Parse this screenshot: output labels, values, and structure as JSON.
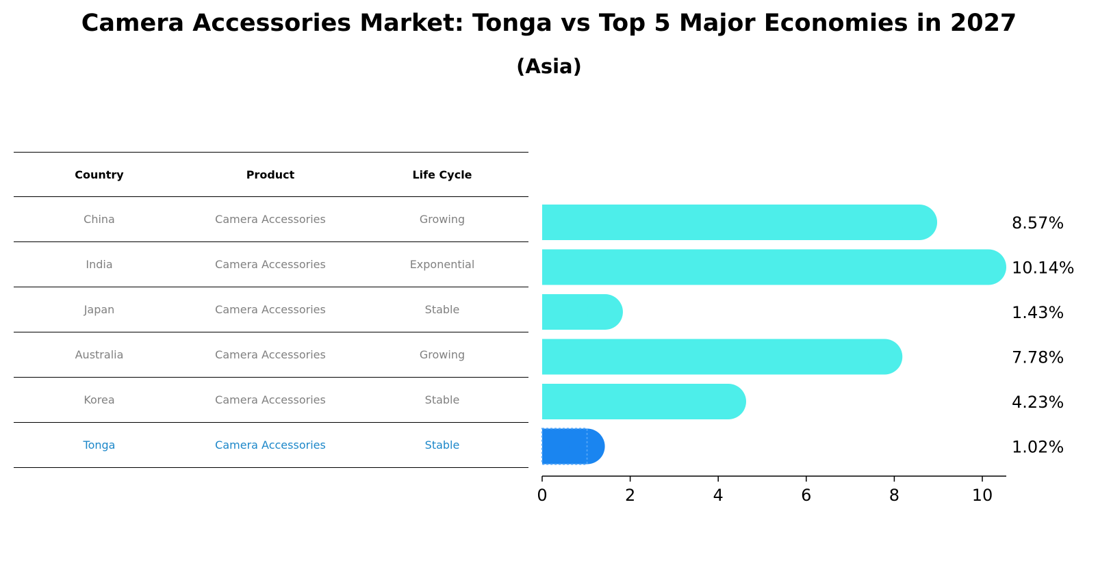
{
  "chart_data": {
    "type": "bar",
    "orientation": "horizontal",
    "title": "Camera Accessories Market: Tonga vs Top 5 Major Economies in 2027",
    "subtitle": "(Asia)",
    "table": {
      "headers": [
        "Country",
        "Product",
        "Life Cycle"
      ],
      "rows": [
        {
          "country": "China",
          "product": "Camera Accessories",
          "life_cycle": "Growing"
        },
        {
          "country": "India",
          "product": "Camera Accessories",
          "life_cycle": "Exponential"
        },
        {
          "country": "Japan",
          "product": "Camera Accessories",
          "life_cycle": "Stable"
        },
        {
          "country": "Australia",
          "product": "Camera Accessories",
          "life_cycle": "Growing"
        },
        {
          "country": "Korea",
          "product": "Camera Accessories",
          "life_cycle": "Stable"
        },
        {
          "country": "Tonga",
          "product": "Camera Accessories",
          "life_cycle": "Stable"
        }
      ]
    },
    "categories": [
      "China",
      "India",
      "Japan",
      "Australia",
      "Korea",
      "Tonga"
    ],
    "values": [
      8.57,
      10.14,
      1.43,
      7.78,
      4.23,
      1.02
    ],
    "value_labels": [
      "8.57%",
      "10.14%",
      "1.43%",
      "7.78%",
      "4.23%",
      "1.02%"
    ],
    "highlight": "Tonga",
    "xlim": [
      0,
      10.65
    ],
    "xticks": [
      0,
      2,
      4,
      6,
      8,
      10
    ],
    "colors": {
      "bar": "#4deeea",
      "highlight": "#1a85f0",
      "highlight_text": "#1c87c9"
    }
  }
}
